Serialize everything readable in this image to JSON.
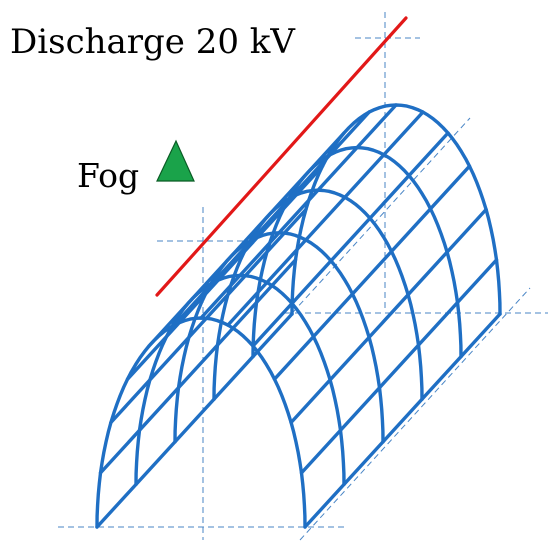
{
  "labels": {
    "discharge": "Discharge 20 kV",
    "fog": "Fog"
  },
  "colors": {
    "mesh": "#1f6fc4",
    "guide": "#4a86c6",
    "conductor": "#e21818",
    "fog_marker": "#1aa34a",
    "fog_marker_edge": "#0a5c25"
  },
  "mesh": {
    "arch_count": 6,
    "longitudinal_lines": 13
  },
  "icons": {
    "fog_marker": "triangle-icon"
  }
}
